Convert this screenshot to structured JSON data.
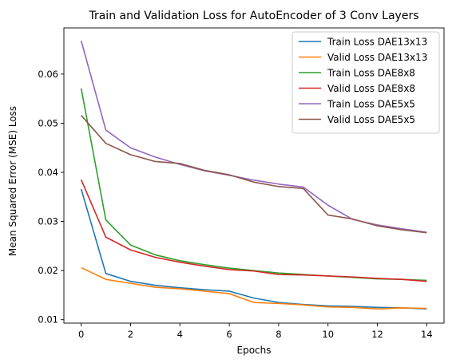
{
  "chart_data": {
    "type": "line",
    "title": "Train and Validation Loss for AutoEncoder of 3 Conv Layers",
    "xlabel": "Epochs",
    "ylabel": "Mean Squared Error (MSE) Loss",
    "xlim": [
      -0.7,
      14.7
    ],
    "ylim": [
      0.0093,
      0.0694
    ],
    "xticks": [
      0,
      2,
      4,
      6,
      8,
      10,
      12,
      14
    ],
    "yticks": [
      0.01,
      0.02,
      0.03,
      0.04,
      0.05,
      0.06
    ],
    "grid": false,
    "legend_position": "top-right",
    "x": [
      0,
      1,
      2,
      3,
      4,
      5,
      6,
      7,
      8,
      9,
      10,
      11,
      12,
      13,
      14
    ],
    "series": [
      {
        "name": "Train Loss DAE13x13",
        "color": "#1f77b4",
        "values": [
          0.0366,
          0.0194,
          0.0178,
          0.017,
          0.0165,
          0.0161,
          0.0158,
          0.0144,
          0.0135,
          0.0131,
          0.0128,
          0.0127,
          0.0125,
          0.0124,
          0.0122
        ]
      },
      {
        "name": "Valid Loss DAE13x13",
        "color": "#ff7f0e",
        "values": [
          0.0206,
          0.0182,
          0.0174,
          0.0166,
          0.0163,
          0.0158,
          0.0153,
          0.0135,
          0.0133,
          0.013,
          0.0126,
          0.0125,
          0.0122,
          0.0124,
          0.0123
        ]
      },
      {
        "name": "Train Loss DAE8x8",
        "color": "#2ca02c",
        "values": [
          0.0571,
          0.0303,
          0.0252,
          0.0232,
          0.022,
          0.0212,
          0.0205,
          0.02,
          0.0195,
          0.0192,
          0.0189,
          0.0186,
          0.0183,
          0.0182,
          0.018
        ]
      },
      {
        "name": "Valid Loss DAE8x8",
        "color": "#d62728",
        "values": [
          0.0385,
          0.0268,
          0.0242,
          0.0227,
          0.0217,
          0.0209,
          0.0202,
          0.0199,
          0.0192,
          0.0191,
          0.0189,
          0.0187,
          0.0184,
          0.0182,
          0.0178
        ]
      },
      {
        "name": "Train Loss DAE5x5",
        "color": "#9467bd",
        "values": [
          0.0668,
          0.0486,
          0.045,
          0.0431,
          0.0416,
          0.0403,
          0.0394,
          0.0384,
          0.0376,
          0.037,
          0.0333,
          0.0304,
          0.0293,
          0.0285,
          0.0278
        ]
      },
      {
        "name": "Valid Loss DAE5x5",
        "color": "#8c564b",
        "values": [
          0.0516,
          0.0459,
          0.0436,
          0.0422,
          0.0418,
          0.0404,
          0.0395,
          0.038,
          0.0371,
          0.0367,
          0.0313,
          0.0305,
          0.0291,
          0.0283,
          0.0277
        ]
      }
    ]
  }
}
